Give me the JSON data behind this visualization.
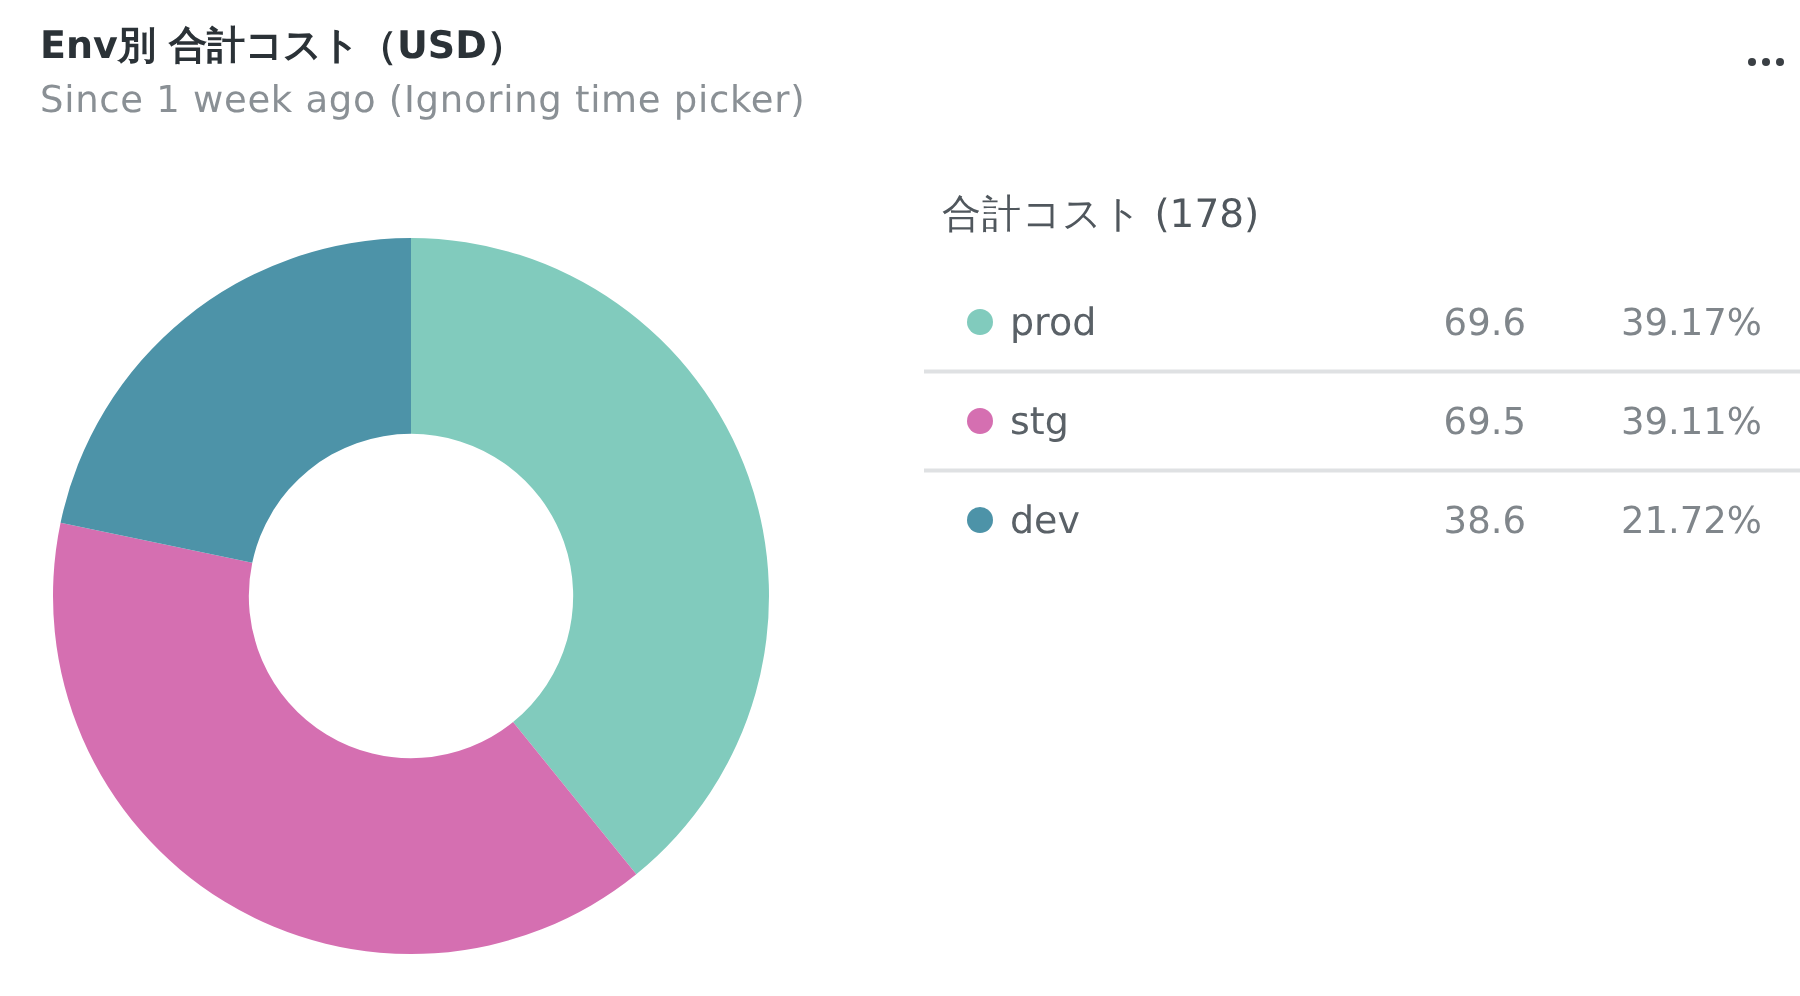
{
  "chart_data": {
    "type": "donut",
    "title": "Env別 合計コスト（USD）",
    "subtitle": "Since 1 week ago (Ignoring time picker)",
    "legend_title": "合計コスト (178)",
    "categories": [
      "prod",
      "stg",
      "dev"
    ],
    "values": [
      69.6,
      69.5,
      38.6
    ],
    "colors": [
      "#81cbbd",
      "#d56fb1",
      "#4d93a8"
    ],
    "data_labels": true,
    "annotations": [
      "39.17%",
      "39.11%",
      "21.72%"
    ],
    "legend": "right"
  }
}
